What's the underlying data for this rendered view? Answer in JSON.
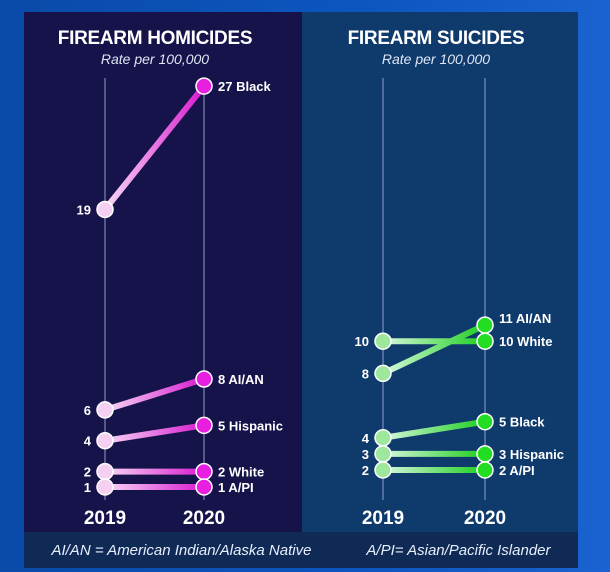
{
  "footer": {
    "aian_note": "AI/AN = American Indian/Alaska Native",
    "api_note": "A/PI= Asian/Pacific Islander"
  },
  "chart_data": [
    {
      "type": "slope",
      "title": "FIREARM HOMICIDES",
      "subtitle": "Rate per 100,000",
      "categories": [
        "2019",
        "2020"
      ],
      "color": "#e81ee0",
      "series": [
        {
          "name": "Black",
          "values": [
            19,
            27
          ]
        },
        {
          "name": "AI/AN",
          "values": [
            6,
            8
          ]
        },
        {
          "name": "Hispanic",
          "values": [
            4,
            5
          ]
        },
        {
          "name": "White",
          "values": [
            2,
            2
          ]
        },
        {
          "name": "A/PI",
          "values": [
            1,
            1
          ]
        }
      ]
    },
    {
      "type": "slope",
      "title": "FIREARM SUICIDES",
      "subtitle": "Rate per 100,000",
      "categories": [
        "2019",
        "2020"
      ],
      "color": "#22dd22",
      "series": [
        {
          "name": "AI/AN",
          "values": [
            8,
            11
          ]
        },
        {
          "name": "White",
          "values": [
            10,
            10
          ]
        },
        {
          "name": "Black",
          "values": [
            4,
            5
          ]
        },
        {
          "name": "Hispanic",
          "values": [
            3,
            3
          ]
        },
        {
          "name": "A/PI",
          "values": [
            2,
            2
          ]
        }
      ]
    }
  ]
}
